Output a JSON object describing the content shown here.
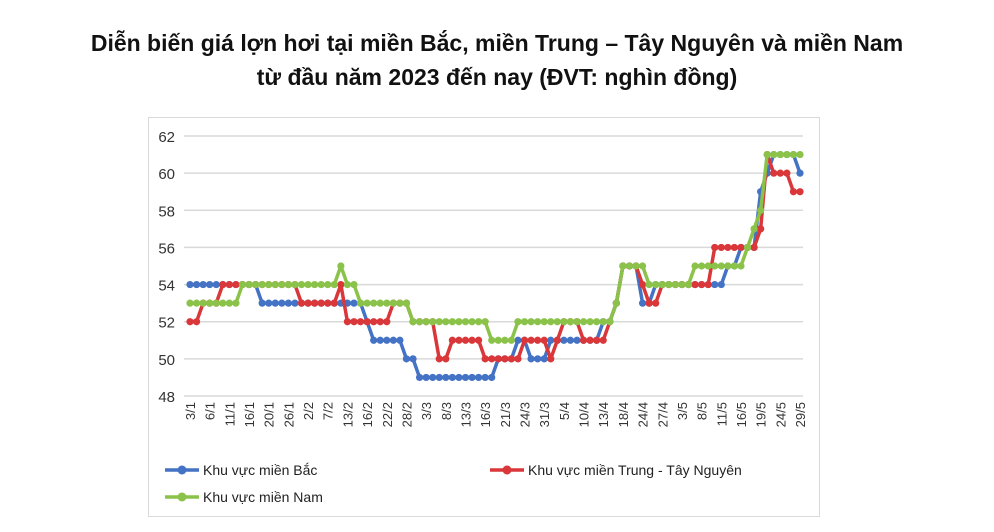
{
  "chart_data": {
    "type": "line",
    "title": "Diễn biến giá lợn hơi tại miền Bắc, miền Trung – Tây Nguyên và miền Nam",
    "subtitle": "từ đầu năm 2023 đến nay (ĐVT: nghìn đồng)",
    "xlabel": "",
    "ylabel": "",
    "ylim": [
      48,
      62
    ],
    "y_ticks": [
      48,
      50,
      52,
      54,
      56,
      58,
      60,
      62
    ],
    "grid": true,
    "legend_position": "bottom",
    "x_tick_labels": [
      "3/1",
      "6/1",
      "11/1",
      "16/1",
      "20/1",
      "26/1",
      "2/2",
      "7/2",
      "13/2",
      "16/2",
      "22/2",
      "28/2",
      "3/3",
      "8/3",
      "13/3",
      "16/3",
      "21/3",
      "24/3",
      "31/3",
      "5/4",
      "10/4",
      "13/4",
      "18/4",
      "24/4",
      "27/4",
      "3/5",
      "8/5",
      "11/5",
      "16/5",
      "19/5",
      "24/5",
      "29/5"
    ],
    "series": [
      {
        "name": "Khu vực miền Bắc",
        "color": "#4472c4",
        "values": [
          54,
          54,
          54,
          54,
          54,
          54,
          54,
          54,
          54,
          54,
          54,
          53,
          53,
          53,
          53,
          53,
          53,
          53,
          53,
          53,
          53,
          53,
          53,
          53,
          53,
          53,
          53,
          52,
          51,
          51,
          51,
          51,
          51,
          50,
          50,
          49,
          49,
          49,
          49,
          49,
          49,
          49,
          49,
          49,
          49,
          49,
          49,
          50,
          50,
          50,
          51,
          51,
          50,
          50,
          50,
          51,
          51,
          51,
          51,
          51,
          51,
          51,
          51,
          52,
          52,
          53,
          55,
          55,
          55,
          53,
          53,
          54,
          54,
          54,
          54,
          54,
          54,
          54,
          54,
          54,
          54,
          54,
          55,
          55,
          56,
          56,
          56,
          59,
          60,
          61,
          61,
          61,
          61,
          60
        ]
      },
      {
        "name": "Khu vực miền Trung - Tây Nguyên",
        "color": "#d9373a",
        "values": [
          52,
          52,
          53,
          53,
          53,
          54,
          54,
          54,
          54,
          54,
          54,
          54,
          54,
          54,
          54,
          54,
          54,
          53,
          53,
          53,
          53,
          53,
          53,
          54,
          52,
          52,
          52,
          52,
          52,
          52,
          52,
          53,
          53,
          53,
          52,
          52,
          52,
          52,
          50,
          50,
          51,
          51,
          51,
          51,
          51,
          50,
          50,
          50,
          50,
          50,
          50,
          51,
          51,
          51,
          51,
          50,
          51,
          52,
          52,
          52,
          51,
          51,
          51,
          51,
          52,
          53,
          55,
          55,
          55,
          54,
          53,
          53,
          54,
          54,
          54,
          54,
          54,
          54,
          54,
          54,
          56,
          56,
          56,
          56,
          56,
          56,
          56,
          57,
          61,
          60,
          60,
          60,
          59,
          59
        ]
      },
      {
        "name": "Khu vực miền Nam",
        "color": "#8bc34a",
        "values": [
          53,
          53,
          53,
          53,
          53,
          53,
          53,
          53,
          54,
          54,
          54,
          54,
          54,
          54,
          54,
          54,
          54,
          54,
          54,
          54,
          54,
          54,
          54,
          55,
          54,
          54,
          53,
          53,
          53,
          53,
          53,
          53,
          53,
          53,
          52,
          52,
          52,
          52,
          52,
          52,
          52,
          52,
          52,
          52,
          52,
          52,
          51,
          51,
          51,
          51,
          52,
          52,
          52,
          52,
          52,
          52,
          52,
          52,
          52,
          52,
          52,
          52,
          52,
          52,
          52,
          53,
          55,
          55,
          55,
          55,
          54,
          54,
          54,
          54,
          54,
          54,
          54,
          55,
          55,
          55,
          55,
          55,
          55,
          55,
          55,
          56,
          57,
          58,
          61,
          61,
          61,
          61,
          61,
          61
        ]
      }
    ]
  }
}
